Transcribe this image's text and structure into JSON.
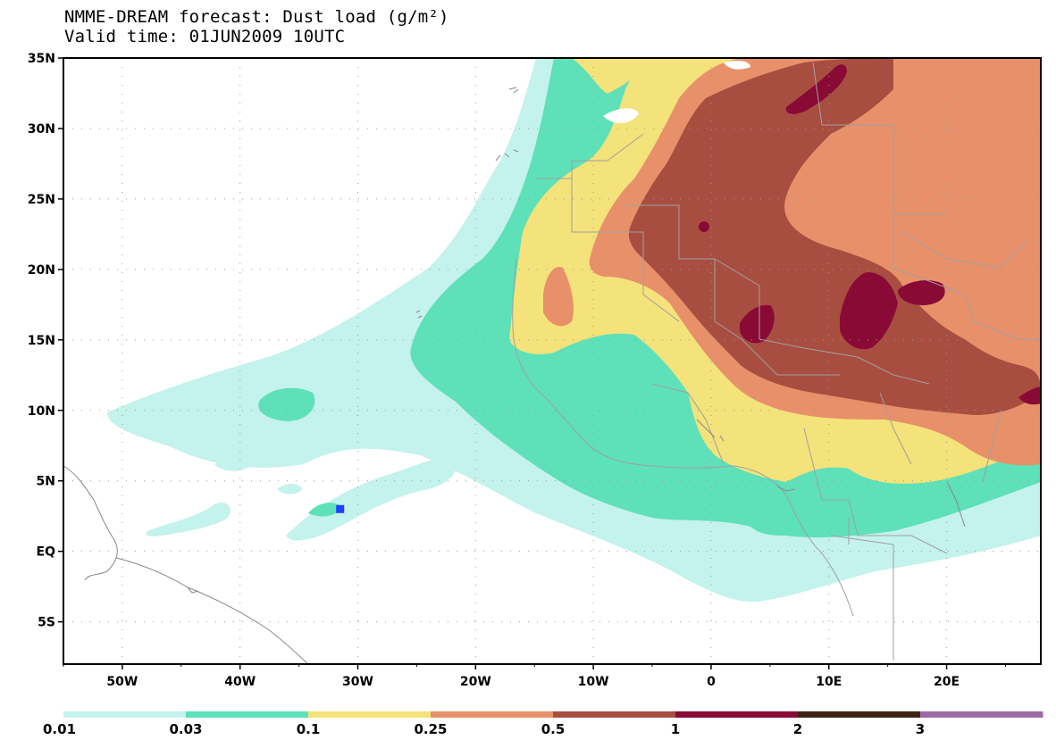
{
  "title": {
    "line1": "NMME-DREAM forecast: Dust load (g/m²)",
    "line2": "Valid time: 01JUN2009 10UTC"
  },
  "map": {
    "lon_range": [
      -55,
      28
    ],
    "lat_range": [
      -8,
      35
    ],
    "lat_ticks": [
      {
        "value": 35,
        "label": "35N"
      },
      {
        "value": 30,
        "label": "30N"
      },
      {
        "value": 25,
        "label": "25N"
      },
      {
        "value": 20,
        "label": "20N"
      },
      {
        "value": 15,
        "label": "15N"
      },
      {
        "value": 10,
        "label": "10N"
      },
      {
        "value": 5,
        "label": "5N"
      },
      {
        "value": 0,
        "label": "EQ"
      },
      {
        "value": -5,
        "label": "5S"
      }
    ],
    "lon_ticks": [
      {
        "value": -50,
        "label": "50W"
      },
      {
        "value": -40,
        "label": "40W"
      },
      {
        "value": -30,
        "label": "30W"
      },
      {
        "value": -20,
        "label": "20W"
      },
      {
        "value": -10,
        "label": "10W"
      },
      {
        "value": 0,
        "label": "0"
      },
      {
        "value": 10,
        "label": "10E"
      },
      {
        "value": 20,
        "label": "20E"
      }
    ],
    "grid": "dotted",
    "marker": {
      "lon": -31.5,
      "lat": 3.0,
      "color": "#1f3fff"
    }
  },
  "legend": {
    "colors": [
      "#c4f2ec",
      "#5ee0b8",
      "#f4e27a",
      "#e8906a",
      "#a84e40",
      "#8a0a36",
      "#3c2414",
      "#9e6aa4"
    ],
    "labels": [
      "0.01",
      "0.03",
      "0.1",
      "0.25",
      "0.5",
      "1",
      "2",
      "3"
    ]
  },
  "colors": {
    "land_border": "#a0a0a0",
    "coast": "#888888",
    "frame": "#000000"
  }
}
